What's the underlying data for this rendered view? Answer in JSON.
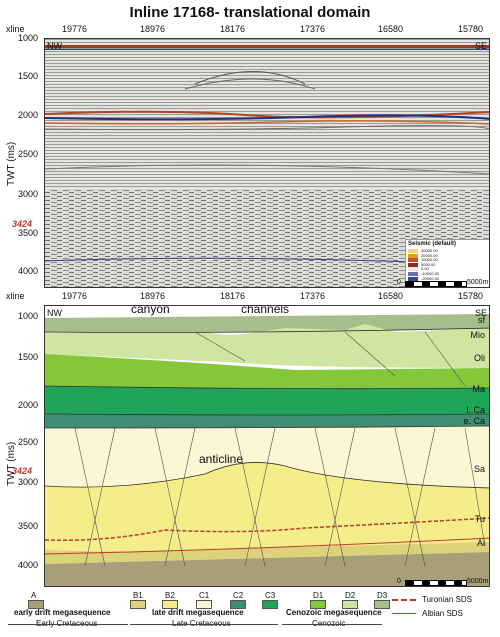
{
  "title": "Inline 17168- translational domain",
  "axis": {
    "xline_label": "xline",
    "xlines": [
      "19776",
      "18976",
      "18176",
      "17376",
      "16580",
      "15780"
    ],
    "y_label": "TWT (ms)",
    "y_ticks": [
      "1000",
      "1500",
      "2000",
      "2500",
      "3000",
      "3500",
      "4000"
    ],
    "marker": "3424",
    "nw": "NW",
    "se": "SE",
    "scale_start": "0",
    "scale_end": "5000m"
  },
  "seismic_legend": {
    "title": "Seismic (default)",
    "entries": [
      "30000.00",
      "20000.00",
      "10000.00",
      "5000.00",
      "0.00",
      "-10000.00",
      "-20000.00",
      "-30000.00"
    ],
    "colors": [
      "#f6d85a",
      "#e59a2f",
      "#c2522a",
      "#8d2c1e",
      "#e8e8e6",
      "#6a6fb0",
      "#3447a0",
      "#9fd8ec"
    ]
  },
  "labels": {
    "canyon": "canyon",
    "channels": "channels",
    "anticline": "anticline",
    "sf": "sf",
    "mio": "Mio",
    "oli": "Oli",
    "ma": "Ma",
    "lca": "l. Ca",
    "eca": "e. Ca",
    "sa": "Sa",
    "tu": "Tu",
    "al": "Al"
  },
  "legend": {
    "items": [
      {
        "code": "A",
        "color": "#a79f77"
      },
      {
        "code": "B1",
        "color": "#dcd27a"
      },
      {
        "code": "B2",
        "color": "#f5ec8a"
      },
      {
        "code": "C1",
        "color": "#fbf6d3"
      },
      {
        "code": "C2",
        "color": "#3f8e73"
      },
      {
        "code": "C3",
        "color": "#1ea55a"
      },
      {
        "code": "D1",
        "color": "#84c83a"
      },
      {
        "code": "D2",
        "color": "#cfe6a2"
      },
      {
        "code": "D3",
        "color": "#a8bd8c"
      }
    ],
    "groups": [
      {
        "name": "early drift megasequence",
        "age": "Early Cretaceous"
      },
      {
        "name": "late drift megasequence",
        "age": "Late Cretaceous"
      },
      {
        "name": "Cenozoic megasequence",
        "age": "Cenozoic"
      }
    ],
    "turonian": "Turonian SDS",
    "albian": "Albian SDS"
  }
}
